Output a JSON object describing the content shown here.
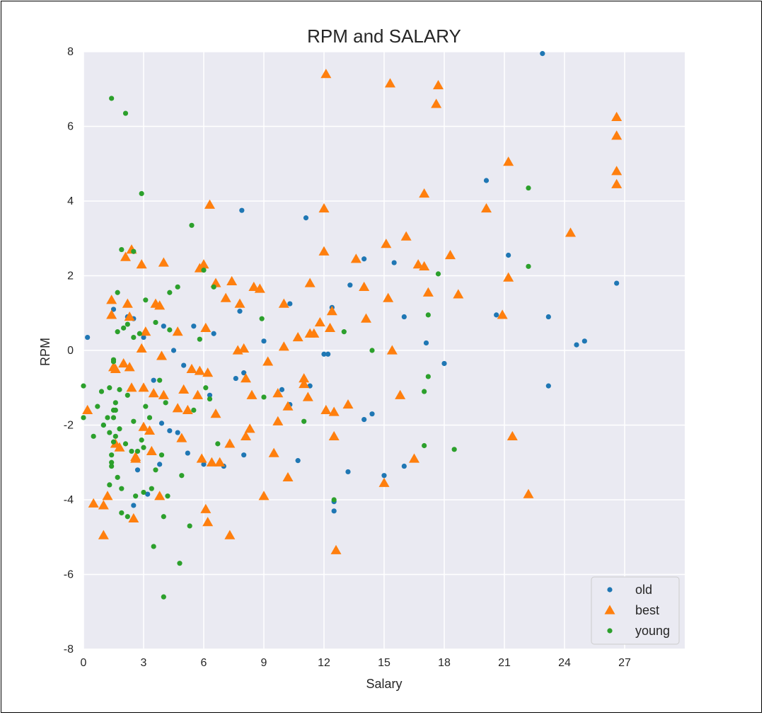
{
  "chart_data": {
    "type": "scatter",
    "title": "RPM and SALARY",
    "xlabel": "Salary",
    "ylabel": "RPM",
    "xlim": [
      0,
      30
    ],
    "ylim": [
      -8,
      8
    ],
    "x_ticks": [
      0,
      3,
      6,
      9,
      12,
      15,
      18,
      21,
      24,
      27
    ],
    "y_ticks": [
      8,
      6,
      4,
      2,
      0,
      -2,
      -4,
      -6,
      -8
    ],
    "grid": true,
    "legend_position": "bottom-right",
    "series": [
      {
        "name": "old",
        "marker": "circle",
        "color": "#1f77b4",
        "points": [
          [
            0.2,
            0.35
          ],
          [
            22.9,
            7.95
          ],
          [
            7.9,
            3.75
          ],
          [
            11.1,
            3.55
          ],
          [
            20.1,
            4.55
          ],
          [
            21.2,
            2.55
          ],
          [
            14.0,
            2.45
          ],
          [
            15.5,
            2.35
          ],
          [
            13.3,
            1.75
          ],
          [
            10.3,
            1.25
          ],
          [
            12.4,
            1.15
          ],
          [
            7.8,
            1.05
          ],
          [
            16.0,
            0.9
          ],
          [
            20.6,
            0.95
          ],
          [
            23.2,
            0.9
          ],
          [
            17.1,
            0.2
          ],
          [
            24.6,
            0.15
          ],
          [
            25.0,
            0.25
          ],
          [
            26.6,
            1.8
          ],
          [
            18.0,
            -0.35
          ],
          [
            23.2,
            -0.95
          ],
          [
            12.0,
            -0.1
          ],
          [
            12.2,
            -0.1
          ],
          [
            8.0,
            -0.6
          ],
          [
            9.9,
            -1.05
          ],
          [
            10.3,
            -1.45
          ],
          [
            14.0,
            -1.85
          ],
          [
            14.4,
            -1.7
          ],
          [
            16.0,
            -3.1
          ],
          [
            15.0,
            -3.35
          ],
          [
            13.2,
            -3.25
          ],
          [
            12.5,
            -4.3
          ],
          [
            10.7,
            -2.95
          ],
          [
            8.0,
            -2.8
          ],
          [
            7.0,
            -3.1
          ],
          [
            6.0,
            -3.05
          ],
          [
            5.0,
            -0.4
          ],
          [
            5.5,
            0.65
          ],
          [
            6.5,
            0.45
          ],
          [
            4.0,
            0.65
          ],
          [
            4.5,
            0.0
          ],
          [
            3.0,
            0.35
          ],
          [
            2.5,
            0.85
          ],
          [
            1.5,
            1.1
          ],
          [
            3.5,
            -0.8
          ],
          [
            3.9,
            -1.95
          ],
          [
            4.7,
            -2.2
          ],
          [
            5.2,
            -2.75
          ],
          [
            3.8,
            -3.05
          ],
          [
            3.2,
            -3.85
          ],
          [
            2.5,
            -4.15
          ],
          [
            1.0,
            -2.0
          ],
          [
            2.2,
            0.9
          ],
          [
            4.3,
            -2.15
          ],
          [
            6.3,
            -1.2
          ],
          [
            7.6,
            -0.75
          ],
          [
            11.3,
            -0.95
          ],
          [
            2.7,
            -3.2
          ],
          [
            12.5,
            -4.05
          ],
          [
            9.0,
            0.25
          ]
        ]
      },
      {
        "name": "best",
        "marker": "triangle",
        "color": "#ff7f0e",
        "points": [
          [
            0.2,
            -1.6
          ],
          [
            0.5,
            -4.1
          ],
          [
            1.0,
            -4.15
          ],
          [
            1.0,
            -4.95
          ],
          [
            1.2,
            -3.9
          ],
          [
            1.4,
            1.35
          ],
          [
            1.4,
            0.95
          ],
          [
            1.6,
            -0.5
          ],
          [
            1.6,
            -2.5
          ],
          [
            1.8,
            -2.6
          ],
          [
            2.0,
            -0.35
          ],
          [
            2.1,
            2.5
          ],
          [
            2.2,
            1.25
          ],
          [
            2.3,
            0.9
          ],
          [
            2.3,
            -0.45
          ],
          [
            2.4,
            2.7
          ],
          [
            2.4,
            -1.0
          ],
          [
            2.5,
            -4.5
          ],
          [
            2.6,
            -2.9
          ],
          [
            2.9,
            2.3
          ],
          [
            2.9,
            0.05
          ],
          [
            3.0,
            -1.0
          ],
          [
            3.0,
            -2.05
          ],
          [
            3.1,
            0.5
          ],
          [
            3.3,
            -2.15
          ],
          [
            3.4,
            -2.7
          ],
          [
            3.5,
            -1.15
          ],
          [
            3.6,
            1.25
          ],
          [
            3.8,
            1.2
          ],
          [
            3.8,
            -3.9
          ],
          [
            3.9,
            -0.15
          ],
          [
            4.0,
            2.35
          ],
          [
            4.7,
            0.5
          ],
          [
            4.7,
            -1.55
          ],
          [
            4.9,
            -2.35
          ],
          [
            5.0,
            -1.05
          ],
          [
            5.2,
            -1.6
          ],
          [
            5.4,
            -0.5
          ],
          [
            5.7,
            -1.2
          ],
          [
            5.8,
            -0.55
          ],
          [
            5.8,
            2.2
          ],
          [
            5.9,
            -2.9
          ],
          [
            6.0,
            2.3
          ],
          [
            6.1,
            0.6
          ],
          [
            6.1,
            -4.25
          ],
          [
            6.2,
            -0.6
          ],
          [
            6.2,
            -4.6
          ],
          [
            6.3,
            3.9
          ],
          [
            6.4,
            -3.0
          ],
          [
            6.6,
            -1.7
          ],
          [
            6.6,
            1.8
          ],
          [
            6.8,
            -3.0
          ],
          [
            7.1,
            1.4
          ],
          [
            7.3,
            -2.5
          ],
          [
            7.3,
            -4.95
          ],
          [
            7.4,
            1.85
          ],
          [
            7.7,
            0.0
          ],
          [
            7.8,
            1.25
          ],
          [
            8.0,
            0.05
          ],
          [
            8.1,
            -0.75
          ],
          [
            8.1,
            -2.3
          ],
          [
            8.3,
            -2.1
          ],
          [
            8.4,
            -1.2
          ],
          [
            8.5,
            1.7
          ],
          [
            8.8,
            1.65
          ],
          [
            9.0,
            -3.9
          ],
          [
            9.2,
            -0.3
          ],
          [
            9.5,
            -2.75
          ],
          [
            9.7,
            -1.9
          ],
          [
            9.7,
            -1.15
          ],
          [
            10.0,
            1.25
          ],
          [
            10.0,
            0.1
          ],
          [
            10.2,
            -1.5
          ],
          [
            10.2,
            -3.4
          ],
          [
            10.7,
            0.35
          ],
          [
            11.0,
            -0.75
          ],
          [
            11.0,
            -0.9
          ],
          [
            11.2,
            -1.25
          ],
          [
            11.3,
            1.8
          ],
          [
            11.3,
            0.45
          ],
          [
            11.5,
            0.45
          ],
          [
            11.8,
            0.75
          ],
          [
            12.0,
            2.65
          ],
          [
            12.0,
            3.8
          ],
          [
            12.1,
            7.4
          ],
          [
            12.1,
            -1.6
          ],
          [
            12.3,
            0.6
          ],
          [
            12.4,
            1.05
          ],
          [
            12.5,
            -1.65
          ],
          [
            12.5,
            -2.3
          ],
          [
            12.6,
            -5.35
          ],
          [
            13.2,
            -1.45
          ],
          [
            13.6,
            2.45
          ],
          [
            14.0,
            1.7
          ],
          [
            14.1,
            0.85
          ],
          [
            15.0,
            -3.55
          ],
          [
            15.1,
            2.85
          ],
          [
            15.2,
            1.4
          ],
          [
            15.3,
            7.15
          ],
          [
            15.4,
            0.0
          ],
          [
            15.8,
            -1.2
          ],
          [
            16.1,
            3.05
          ],
          [
            16.5,
            -2.9
          ],
          [
            16.7,
            2.3
          ],
          [
            17.0,
            2.25
          ],
          [
            17.0,
            4.2
          ],
          [
            17.2,
            1.55
          ],
          [
            17.6,
            6.6
          ],
          [
            17.7,
            7.1
          ],
          [
            18.3,
            2.55
          ],
          [
            18.7,
            1.5
          ],
          [
            20.1,
            3.8
          ],
          [
            20.9,
            0.95
          ],
          [
            21.2,
            5.05
          ],
          [
            21.2,
            1.95
          ],
          [
            21.4,
            -2.3
          ],
          [
            22.2,
            -3.85
          ],
          [
            24.3,
            3.15
          ],
          [
            26.6,
            6.25
          ],
          [
            26.6,
            5.75
          ],
          [
            26.6,
            4.8
          ],
          [
            26.6,
            4.45
          ],
          [
            1.5,
            -0.45
          ],
          [
            2.6,
            -2.85
          ],
          [
            4.0,
            -1.2
          ]
        ]
      },
      {
        "name": "young",
        "marker": "circle",
        "color": "#2ca02c",
        "points": [
          [
            0.0,
            -0.95
          ],
          [
            0.0,
            -1.8
          ],
          [
            0.5,
            -2.3
          ],
          [
            0.9,
            -1.1
          ],
          [
            1.0,
            -2.0
          ],
          [
            1.2,
            -1.8
          ],
          [
            1.3,
            -1.0
          ],
          [
            1.3,
            -2.2
          ],
          [
            1.4,
            -2.8
          ],
          [
            1.4,
            -3.0
          ],
          [
            1.4,
            -3.1
          ],
          [
            1.5,
            -1.6
          ],
          [
            1.5,
            -2.45
          ],
          [
            1.5,
            -0.3
          ],
          [
            1.5,
            -0.25
          ],
          [
            1.6,
            -1.6
          ],
          [
            1.6,
            -1.4
          ],
          [
            1.6,
            -2.3
          ],
          [
            1.7,
            -3.4
          ],
          [
            1.7,
            0.5
          ],
          [
            1.7,
            1.55
          ],
          [
            1.8,
            -2.1
          ],
          [
            1.8,
            -1.05
          ],
          [
            1.9,
            -4.35
          ],
          [
            1.9,
            -3.7
          ],
          [
            2.0,
            0.6
          ],
          [
            2.1,
            -2.5
          ],
          [
            2.2,
            0.7
          ],
          [
            2.2,
            -4.45
          ],
          [
            2.4,
            -2.7
          ],
          [
            2.5,
            0.35
          ],
          [
            2.5,
            -1.9
          ],
          [
            2.6,
            -3.9
          ],
          [
            2.7,
            -2.7
          ],
          [
            2.8,
            0.45
          ],
          [
            2.9,
            -2.4
          ],
          [
            3.0,
            -3.8
          ],
          [
            3.1,
            1.35
          ],
          [
            3.1,
            -1.5
          ],
          [
            3.3,
            -1.8
          ],
          [
            3.4,
            -3.7
          ],
          [
            3.5,
            -5.25
          ],
          [
            3.6,
            -3.2
          ],
          [
            3.6,
            0.75
          ],
          [
            3.8,
            -0.8
          ],
          [
            3.9,
            -2.8
          ],
          [
            4.0,
            -6.6
          ],
          [
            4.0,
            -4.45
          ],
          [
            4.1,
            -1.4
          ],
          [
            4.2,
            -3.9
          ],
          [
            4.3,
            1.55
          ],
          [
            4.3,
            0.55
          ],
          [
            4.7,
            1.7
          ],
          [
            4.8,
            -5.7
          ],
          [
            4.9,
            -3.35
          ],
          [
            5.3,
            -4.7
          ],
          [
            5.4,
            3.35
          ],
          [
            5.5,
            -1.6
          ],
          [
            5.8,
            0.3
          ],
          [
            6.0,
            2.15
          ],
          [
            6.1,
            -1.0
          ],
          [
            6.3,
            -1.3
          ],
          [
            6.5,
            1.7
          ],
          [
            6.7,
            -2.5
          ],
          [
            1.4,
            6.75
          ],
          [
            2.1,
            6.35
          ],
          [
            2.9,
            4.2
          ],
          [
            1.9,
            2.7
          ],
          [
            2.5,
            2.65
          ],
          [
            8.9,
            0.85
          ],
          [
            9.0,
            -1.25
          ],
          [
            11.0,
            -1.9
          ],
          [
            12.5,
            -4.0
          ],
          [
            13.0,
            0.5
          ],
          [
            14.4,
            0.0
          ],
          [
            17.0,
            -1.1
          ],
          [
            17.0,
            -2.55
          ],
          [
            17.2,
            -0.7
          ],
          [
            17.2,
            0.95
          ],
          [
            17.7,
            2.05
          ],
          [
            18.5,
            -2.65
          ],
          [
            22.2,
            4.35
          ],
          [
            22.2,
            2.25
          ],
          [
            1.3,
            -3.6
          ],
          [
            2.2,
            -1.2
          ],
          [
            0.7,
            -1.5
          ],
          [
            1.5,
            -1.8
          ],
          [
            3.0,
            -2.6
          ]
        ]
      }
    ]
  }
}
